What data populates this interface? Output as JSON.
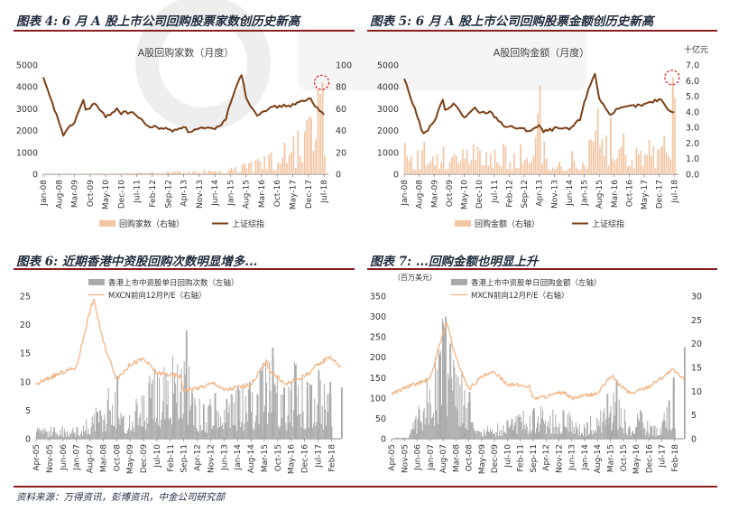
{
  "source_note": "资料来源：万得资讯，彭博资讯，中金公司研究部",
  "colors": {
    "bar_peach": "#f3c6a4",
    "line_brown": "#7b3f17",
    "bar_gray": "#a9a9a9",
    "line_orange": "#f4b383",
    "marker_red": "#e02020",
    "rule": "#8b1e1e"
  },
  "chart_data": [
    {
      "id": "chart4",
      "type": "bar",
      "panel_title": "图表 4: 6 月 A 股上市公司回购股票家数创历史新高",
      "title": "A股回购家数（月度）",
      "y_left_ticks": [
        "0",
        "1000",
        "2000",
        "3000",
        "4000",
        "5000"
      ],
      "y_right_ticks": [
        "0",
        "20",
        "40",
        "60",
        "80",
        "100"
      ],
      "ylim_left": [
        0,
        5000
      ],
      "ylim_right": [
        0,
        100
      ],
      "x_ticks": [
        "Jan-08",
        "Aug-08",
        "Mar-09",
        "Oct-09",
        "May-10",
        "Dec-10",
        "Jul-11",
        "Feb-12",
        "Sep-12",
        "Apr-13",
        "Nov-13",
        "Jun-14",
        "Jan-15",
        "Aug-15",
        "Mar-16",
        "Oct-16",
        "May-17",
        "Dec-17",
        "Jul-18"
      ],
      "legend": [
        "回购家数（右轴）",
        "上证综指"
      ],
      "series": [
        {
          "name": "上证综指",
          "axis": "left",
          "kind": "line",
          "x": [
            "Jan-08",
            "Aug-08",
            "Oct-08",
            "Mar-09",
            "Jul-09",
            "Aug-09",
            "Dec-09",
            "May-10",
            "Oct-10",
            "Dec-10",
            "May-11",
            "Dec-11",
            "Jul-12",
            "Nov-12",
            "Apr-13",
            "Jun-13",
            "Dec-13",
            "Jun-14",
            "Nov-14",
            "Jan-15",
            "May-15",
            "Jun-15",
            "Aug-15",
            "Jan-16",
            "Mar-16",
            "Oct-16",
            "Apr-17",
            "Jan-18",
            "Mar-18",
            "Jul-18"
          ],
          "values": [
            4380,
            2400,
            1800,
            2400,
            3400,
            2900,
            3250,
            2600,
            3000,
            2800,
            2850,
            2200,
            2100,
            1990,
            2200,
            1950,
            2100,
            2050,
            2500,
            3300,
            4400,
            4600,
            3500,
            2700,
            2900,
            3100,
            3150,
            3450,
            3100,
            2800
          ]
        },
        {
          "name": "回购家数（右轴）",
          "axis": "right",
          "kind": "bar",
          "x": [
            "Jan-08",
            "Jan-09",
            "Jan-10",
            "Jan-11",
            "Jan-12",
            "Jan-13",
            "Jan-14",
            "Jan-15",
            "Jul-15",
            "Jan-16",
            "Jul-16",
            "Jan-17",
            "Jul-17",
            "Jan-18",
            "Jun-18"
          ],
          "values": [
            0.5,
            0.5,
            1,
            1,
            2,
            3,
            4,
            6,
            10,
            14,
            20,
            28,
            40,
            52,
            84
          ]
        }
      ]
    },
    {
      "id": "chart5",
      "type": "bar",
      "panel_title": "图表 5: 6 月 A 股上市公司回购股票金额创历史新高",
      "title": "A股回购金额（月度）",
      "y_right_unit": "十亿元",
      "y_left_ticks": [
        "0",
        "1000",
        "2000",
        "3000",
        "4000",
        "5000"
      ],
      "y_right_ticks": [
        "0.0",
        "1.0",
        "2.0",
        "3.0",
        "4.0",
        "5.0",
        "6.0",
        "7.0"
      ],
      "ylim_left": [
        0,
        5000
      ],
      "ylim_right": [
        0,
        7
      ],
      "x_ticks": [
        "Jan-08",
        "Aug-08",
        "Mar-09",
        "Oct-09",
        "May-10",
        "Dec-10",
        "Jul-11",
        "Feb-12",
        "Sep-12",
        "Apr-13",
        "Nov-13",
        "Jun-14",
        "Jan-15",
        "Aug-15",
        "Mar-16",
        "Oct-16",
        "May-17",
        "Dec-17",
        "Jul-18"
      ],
      "legend": [
        "回购金额（右轴）",
        "上证综指"
      ],
      "series": [
        {
          "name": "上证综指",
          "axis": "left",
          "kind": "line",
          "x": [
            "Jan-08",
            "Aug-08",
            "Oct-08",
            "Mar-09",
            "Jul-09",
            "Aug-09",
            "Dec-09",
            "May-10",
            "Oct-10",
            "Dec-10",
            "May-11",
            "Dec-11",
            "Jul-12",
            "Nov-12",
            "Apr-13",
            "Jun-13",
            "Dec-13",
            "Jun-14",
            "Nov-14",
            "Jan-15",
            "May-15",
            "Jun-15",
            "Aug-15",
            "Jan-16",
            "Mar-16",
            "Oct-16",
            "Apr-17",
            "Jan-18",
            "Mar-18",
            "Jul-18"
          ],
          "values": [
            4380,
            2400,
            1800,
            2400,
            3400,
            2900,
            3250,
            2600,
            3000,
            2800,
            2850,
            2200,
            2100,
            1990,
            2200,
            1950,
            2100,
            2050,
            2500,
            3300,
            4400,
            4600,
            3500,
            2700,
            2900,
            3100,
            3150,
            3450,
            3100,
            2800
          ]
        },
        {
          "name": "回购金额（右轴）",
          "axis": "right",
          "kind": "bar",
          "x": [
            "Jul-12",
            "Jan-13",
            "Apr-13",
            "Jul-13",
            "Jan-14",
            "Jul-14",
            "Mar-15",
            "Jul-15",
            "Jan-16",
            "Jul-16",
            "Jan-17",
            "Jul-17",
            "Jan-18",
            "Jun-18"
          ],
          "values": [
            1.9,
            1.2,
            5.7,
            1.0,
            0.8,
            1.5,
            2.2,
            4.2,
            3.5,
            2.6,
            1.7,
            2.2,
            1.8,
            6.2
          ]
        }
      ]
    },
    {
      "id": "chart6",
      "type": "bar",
      "panel_title": "图表 6:  近期香港中资股回购次数明显增多...",
      "y_left_ticks": [
        "0",
        "5",
        "10",
        "15",
        "20",
        "25"
      ],
      "ylim": [
        0,
        25
      ],
      "x_ticks": [
        "Apr-05",
        "Nov-05",
        "Jun-06",
        "Jan-07",
        "Aug-07",
        "Mar-08",
        "Oct-08",
        "May-09",
        "Dec-09",
        "Jul-10",
        "Feb-11",
        "Sep-11",
        "Apr-12",
        "Nov-12",
        "Jun-13",
        "Jan-14",
        "Aug-14",
        "Mar-15",
        "Oct-15",
        "May-16",
        "Dec-16",
        "Jul-17",
        "Feb-18"
      ],
      "legend": [
        "香港上市中资股单日回购次数（左轴）",
        "MXCN前向12月P/E（右轴）"
      ],
      "series": [
        {
          "name": "MXCN前向12月P/E（右轴）",
          "axis": "left",
          "kind": "line",
          "x": [
            "Apr-05",
            "Jan-06",
            "Jan-07",
            "Jul-07",
            "Oct-07",
            "Mar-08",
            "Oct-08",
            "May-09",
            "Dec-09",
            "Jul-10",
            "Jul-11",
            "Sep-11",
            "Jun-12",
            "Jan-13",
            "Jun-13",
            "Jan-14",
            "Aug-14",
            "Apr-15",
            "Jun-15",
            "Feb-16",
            "Dec-16",
            "Jan-18",
            "Jul-18"
          ],
          "values": [
            9.5,
            11,
            12.5,
            21,
            24.5,
            17,
            10.5,
            13,
            14,
            11.5,
            11,
            8.5,
            9,
            9.8,
            8.5,
            9,
            9.5,
            13.5,
            12,
            9.5,
            11,
            14.5,
            12.5
          ]
        },
        {
          "name": "香港上市中资股单日回购次数（左轴）",
          "axis": "left",
          "kind": "bar",
          "x": [
            "Jan-06",
            "Jan-07",
            "Oct-08",
            "Jan-09",
            "Oct-11",
            "Jan-12",
            "Jul-12",
            "Jan-13",
            "Jul-13",
            "Jan-14",
            "Jul-14",
            "Jan-15",
            "Jul-15",
            "Jan-16",
            "Jul-16",
            "Jan-17",
            "Jul-17",
            "Jan-18",
            "Jul-18"
          ],
          "values": [
            2,
            2,
            11,
            4,
            19,
            8,
            6,
            8,
            7,
            9,
            10,
            12,
            16,
            9,
            13,
            10,
            12,
            10,
            9
          ]
        }
      ]
    },
    {
      "id": "chart7",
      "type": "bar",
      "panel_title": "图表 7:  ...回购金额也明显上升",
      "y_left_unit": "（百万美元）",
      "y_left_ticks": [
        "0",
        "50",
        "100",
        "150",
        "200",
        "250",
        "300",
        "350"
      ],
      "y_right_ticks": [
        "0",
        "5",
        "10",
        "15",
        "20",
        "25",
        "30"
      ],
      "ylim_left": [
        0,
        350
      ],
      "ylim_right": [
        0,
        30
      ],
      "x_ticks": [
        "Apr-05",
        "Nov-05",
        "Jun-06",
        "Jan-07",
        "Aug-07",
        "Mar-08",
        "Oct-08",
        "May-09",
        "Dec-09",
        "Jul-10",
        "Feb-11",
        "Sep-11",
        "Apr-12",
        "Nov-12",
        "Jun-13",
        "Jan-14",
        "Aug-14",
        "Mar-15",
        "Oct-15",
        "May-16",
        "Dec-16",
        "Jul-17",
        "Feb-18"
      ],
      "legend": [
        "香港上市中资股单日回购金额（左轴）",
        "MXCN前向12月P/E（右轴）"
      ],
      "series": [
        {
          "name": "MXCN前向12月P/E（右轴）",
          "axis": "right",
          "kind": "line",
          "x": [
            "Apr-05",
            "Jan-06",
            "Jan-07",
            "Jul-07",
            "Oct-07",
            "Mar-08",
            "Oct-08",
            "May-09",
            "Dec-09",
            "Jul-10",
            "Jul-11",
            "Sep-11",
            "Jun-12",
            "Jan-13",
            "Jun-13",
            "Jan-14",
            "Aug-14",
            "Apr-15",
            "Jun-15",
            "Feb-16",
            "Dec-16",
            "Jan-18",
            "Jul-18"
          ],
          "values": [
            9.5,
            11,
            12.5,
            21,
            24.5,
            17,
            10.5,
            13,
            14,
            11.5,
            11,
            8.5,
            9,
            9.8,
            8.5,
            9,
            9.5,
            13.5,
            12,
            9.5,
            11,
            14.5,
            12.5
          ]
        },
        {
          "name": "香港上市中资股单日回购金额（左轴）",
          "axis": "left",
          "kind": "bar",
          "x": [
            "Jan-06",
            "Sep-07",
            "Oct-08",
            "Jan-09",
            "Sep-11",
            "Jan-13",
            "Feb-14",
            "Jan-15",
            "Jun-15",
            "Jan-16",
            "Jul-16",
            "Jan-17",
            "Jul-17",
            "Jan-18",
            "Jul-18"
          ],
          "values": [
            3,
            300,
            115,
            20,
            75,
            70,
            40,
            110,
            145,
            30,
            70,
            30,
            40,
            150,
            225
          ]
        }
      ]
    }
  ]
}
